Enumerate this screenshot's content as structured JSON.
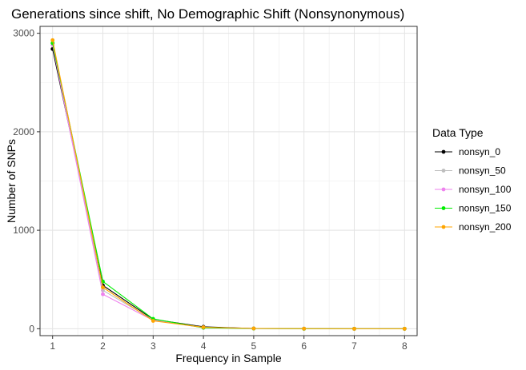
{
  "chart_data": {
    "type": "line",
    "title": "Generations since shift, No Demographic Shift (Nonsynonymous)",
    "xlabel": "Frequency in Sample",
    "ylabel": "Number of SNPs",
    "x": [
      1,
      2,
      3,
      4,
      5,
      6,
      7,
      8
    ],
    "xlim": [
      0.75,
      8.25
    ],
    "ylim": [
      -70,
      3070
    ],
    "xticks": [
      1,
      2,
      3,
      4,
      5,
      6,
      7,
      8
    ],
    "yticks": [
      0,
      1000,
      2000,
      3000
    ],
    "grid": true,
    "legend": {
      "title": "Data Type",
      "position": "right"
    },
    "series": [
      {
        "name": "nonsyn_0",
        "color": "#000000",
        "values": [
          2840,
          440,
          95,
          20,
          3,
          1,
          0,
          0
        ]
      },
      {
        "name": "nonsyn_50",
        "color": "#bebebe",
        "values": [
          2900,
          390,
          90,
          15,
          2,
          1,
          0,
          0
        ]
      },
      {
        "name": "nonsyn_100",
        "color": "#ee82ee",
        "values": [
          2880,
          350,
          85,
          12,
          2,
          0,
          0,
          0
        ]
      },
      {
        "name": "nonsyn_150",
        "color": "#00ee00",
        "values": [
          2900,
          480,
          100,
          10,
          2,
          0,
          0,
          0
        ]
      },
      {
        "name": "nonsyn_200",
        "color": "#ffa500",
        "values": [
          2930,
          420,
          80,
          15,
          3,
          1,
          0,
          0
        ]
      }
    ]
  }
}
